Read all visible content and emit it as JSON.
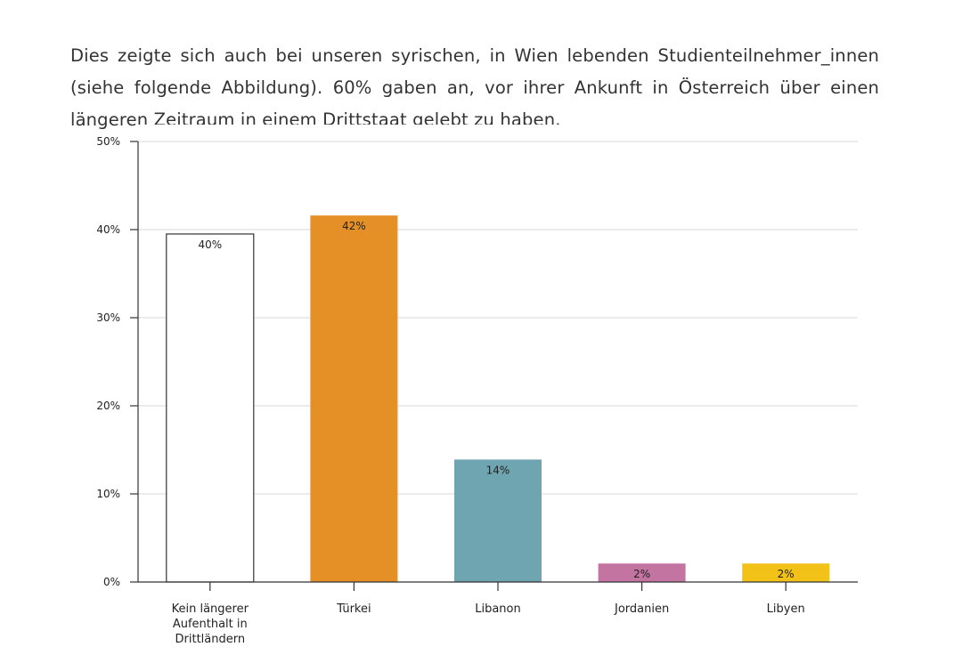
{
  "intro_text": "Dies zeigte sich auch bei unseren syrischen, in Wien lebenden Studienteilnehmer_innen (siehe folgende Abbildung). 60% gaben an, vor ihrer Ankunft in Österreich über einen längeren Zeitraum in einem Drittstaat gelebt zu haben.",
  "chart_data": {
    "type": "bar",
    "title": "",
    "xlabel": "",
    "ylabel": "",
    "ylim": [
      0,
      50
    ],
    "yticks": [
      0,
      10,
      20,
      30,
      40,
      50
    ],
    "ytick_labels": [
      "0%",
      "10%",
      "20%",
      "30%",
      "40%",
      "50%"
    ],
    "grid": true,
    "categories": [
      [
        "Kein längerer",
        "Aufenthalt in",
        "Drittländern"
      ],
      [
        "Türkei"
      ],
      [
        "Libanon"
      ],
      [
        "Jordanien"
      ],
      [
        "Libyen"
      ]
    ],
    "values": [
      39.5,
      41.6,
      13.9,
      2.1,
      2.1
    ],
    "data_labels": [
      "40%",
      "42%",
      "14%",
      "2%",
      "2%"
    ],
    "colors": [
      "#ffffff",
      "#e58f27",
      "#6fa5b0",
      "#c474a0",
      "#f2c219"
    ]
  }
}
